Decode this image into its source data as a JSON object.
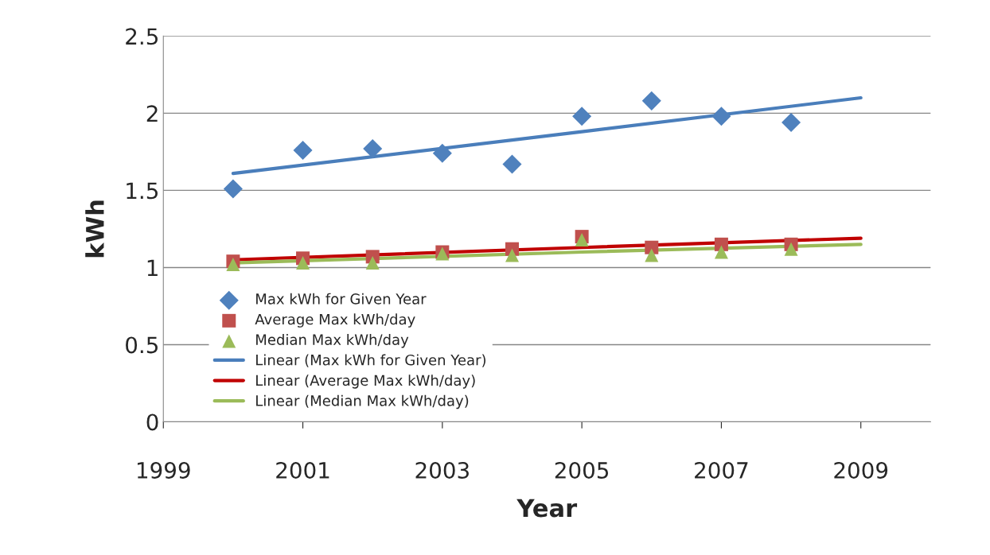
{
  "chart_data": {
    "type": "scatter",
    "xlabel": "Year",
    "ylabel": "kWh",
    "x": [
      2000,
      2001,
      2002,
      2003,
      2004,
      2005,
      2006,
      2007,
      2008
    ],
    "series": [
      {
        "name": "Max kWh for Given Year",
        "color": "#4f81bd",
        "marker": "diamond",
        "values": [
          1.51,
          1.76,
          1.77,
          1.74,
          1.67,
          1.98,
          2.08,
          1.98,
          1.94
        ]
      },
      {
        "name": "Average Max kWh/day",
        "color": "#c0504d",
        "marker": "square",
        "values": [
          1.04,
          1.06,
          1.07,
          1.1,
          1.12,
          1.2,
          1.13,
          1.15,
          1.15
        ]
      },
      {
        "name": "Median Max kWh/day",
        "color": "#9bbb59",
        "marker": "triangle",
        "values": [
          1.02,
          1.03,
          1.03,
          1.09,
          1.08,
          1.18,
          1.08,
          1.1,
          1.12
        ]
      },
      {
        "name": "Linear (Max kWh for Given Year)",
        "type": "line",
        "color": "#4a7ebb",
        "x": [
          2000,
          2005,
          2009
        ],
        "values": [
          1.61,
          1.88,
          2.1
        ]
      },
      {
        "name": "Linear (Average Max kWh/day)",
        "type": "line",
        "color": "#c00000",
        "x": [
          2000,
          2005,
          2009
        ],
        "values": [
          1.05,
          1.13,
          1.19
        ]
      },
      {
        "name": "Linear (Median Max kWh/day)",
        "type": "line",
        "color": "#9bbb59",
        "x": [
          2000,
          2005,
          2009
        ],
        "values": [
          1.03,
          1.1,
          1.15
        ]
      }
    ],
    "xlim": [
      1999,
      2010
    ],
    "xticks": [
      1999,
      2001,
      2003,
      2005,
      2007,
      2009
    ],
    "ylim": [
      0,
      2.5
    ],
    "yticks": [
      {
        "value": 0,
        "label": "0"
      },
      0.5,
      {
        "value": 1,
        "label": "1"
      },
      1.5,
      {
        "value": 2,
        "label": "2"
      },
      2.5
    ],
    "grid": "y",
    "legend": "bottom left"
  }
}
